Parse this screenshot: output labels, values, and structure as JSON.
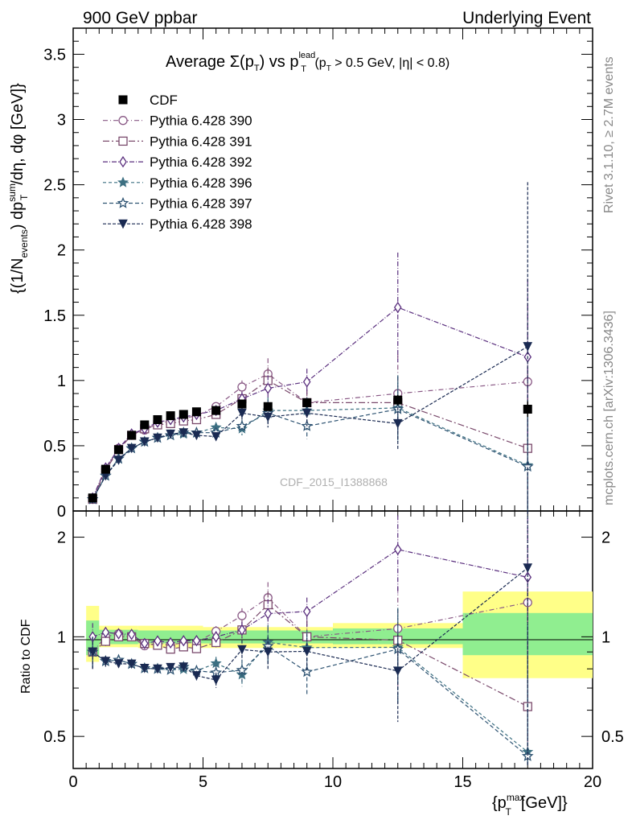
{
  "header": {
    "left": "900 GeV ppbar",
    "right": "Underlying Event"
  },
  "side_labels": {
    "rivet": "Rivet 3.1.10, ≥ 2.7M events",
    "mcplots": "mcplots.cern.ch [arXiv:1306.3436]"
  },
  "watermark": "CDF_2015_I1388868",
  "main_title": {
    "prefix": "Average ",
    "sigma": "Σ(p",
    "sub_t": "T",
    "mid": ") vs p",
    "sup_lead": "lead",
    "sub_t2": "T",
    "cut": " (p",
    "sub_t3": "T",
    "rest": " > 0.5 GeV, |η| < 0.8)"
  },
  "axes": {
    "upper_ylabel": "{(1/N_events) dp_T^sum/dη, dφ [GeV]}",
    "lower_ylabel": "Ratio to CDF",
    "xlabel": "{p_T^max [GeV]}",
    "upper_yticks": [
      "0",
      "0.5",
      "1",
      "1.5",
      "2",
      "2.5",
      "3",
      "3.5"
    ],
    "lower_yticks": [
      "0.5",
      "1",
      "2"
    ],
    "xticks": [
      "0",
      "5",
      "10",
      "15",
      "20"
    ]
  },
  "chart_data": {
    "type": "line",
    "xlim": [
      0,
      20
    ],
    "upper_ylim": [
      0,
      3.7
    ],
    "lower_ylim": [
      0.4,
      2.4
    ],
    "lower_scale": "log",
    "legend_position": "top-left",
    "x": [
      0.75,
      1.25,
      1.75,
      2.25,
      2.75,
      3.25,
      3.75,
      4.25,
      4.75,
      5.5,
      6.5,
      7.5,
      9.0,
      12.5,
      17.5
    ],
    "data": {
      "name": "CDF",
      "values": [
        0.1,
        0.32,
        0.47,
        0.58,
        0.66,
        0.7,
        0.73,
        0.74,
        0.76,
        0.77,
        0.82,
        0.8,
        0.83,
        0.85,
        0.78
      ],
      "errors": [
        0.01,
        0.01,
        0.01,
        0.01,
        0.01,
        0.01,
        0.01,
        0.01,
        0.01,
        0.01,
        0.02,
        0.02,
        0.03,
        0.04,
        0.06
      ]
    },
    "band_inner": [
      [
        0.5,
        1.0,
        0.88,
        1.12
      ],
      [
        1.0,
        2.5,
        0.95,
        1.05
      ],
      [
        2.5,
        5.0,
        0.955,
        1.045
      ],
      [
        5.0,
        10.0,
        0.955,
        1.045
      ],
      [
        10.0,
        15.0,
        0.95,
        1.06
      ],
      [
        15.0,
        20.0,
        0.88,
        1.18
      ]
    ],
    "band_outer": [
      [
        0.5,
        1.0,
        0.84,
        1.24
      ],
      [
        1.0,
        2.5,
        0.93,
        1.08
      ],
      [
        2.5,
        5.0,
        0.925,
        1.08
      ],
      [
        5.0,
        10.0,
        0.925,
        1.07
      ],
      [
        10.0,
        15.0,
        0.925,
        1.1
      ],
      [
        15.0,
        20.0,
        0.75,
        1.37
      ]
    ],
    "series": [
      {
        "name": "Pythia 6.428 390",
        "color": "#8a5a86",
        "dash": "6,3,1,3",
        "marker": "circle-open",
        "values": [
          0.09,
          0.32,
          0.48,
          0.58,
          0.62,
          0.67,
          0.69,
          0.71,
          0.73,
          0.8,
          0.95,
          1.05,
          0.83,
          0.9,
          0.99
        ],
        "errors": [
          0.01,
          0.01,
          0.01,
          0.01,
          0.01,
          0.01,
          0.01,
          0.02,
          0.02,
          0.03,
          0.05,
          0.12,
          0.1,
          0.3,
          0.6
        ]
      },
      {
        "name": "Pythia 6.428 391",
        "color": "#7a4a6c",
        "dash": "8,3,2,3",
        "marker": "square-open",
        "values": [
          0.09,
          0.31,
          0.47,
          0.58,
          0.63,
          0.66,
          0.67,
          0.69,
          0.7,
          0.74,
          0.86,
          1.0,
          0.83,
          0.83,
          0.48
        ],
        "errors": [
          0.01,
          0.01,
          0.01,
          0.01,
          0.01,
          0.01,
          0.01,
          0.02,
          0.02,
          0.03,
          0.05,
          0.1,
          0.1,
          0.2,
          0.6
        ]
      },
      {
        "name": "Pythia 6.428 392",
        "color": "#5a2f7e",
        "dash": "6,2,1,2",
        "marker": "diamond-open",
        "values": [
          0.1,
          0.33,
          0.48,
          0.59,
          0.63,
          0.68,
          0.7,
          0.72,
          0.74,
          0.77,
          0.86,
          0.94,
          0.99,
          1.56,
          1.18
        ],
        "errors": [
          0.01,
          0.01,
          0.01,
          0.01,
          0.01,
          0.01,
          0.01,
          0.02,
          0.02,
          0.03,
          0.05,
          0.1,
          0.1,
          0.42,
          0.6
        ]
      },
      {
        "name": "Pythia 6.428 396",
        "color": "#3d7082",
        "dash": "4,3",
        "marker": "star-filled",
        "values": [
          0.09,
          0.27,
          0.4,
          0.48,
          0.53,
          0.56,
          0.58,
          0.59,
          0.6,
          0.64,
          0.63,
          0.77,
          0.77,
          0.79,
          0.35
        ],
        "errors": [
          0.01,
          0.01,
          0.01,
          0.01,
          0.01,
          0.01,
          0.01,
          0.01,
          0.02,
          0.03,
          0.05,
          0.1,
          0.1,
          0.25,
          0.5
        ]
      },
      {
        "name": "Pythia 6.428 397",
        "color": "#2e5372",
        "dash": "5,3",
        "marker": "star-open",
        "values": [
          0.09,
          0.27,
          0.4,
          0.48,
          0.53,
          0.56,
          0.58,
          0.6,
          0.6,
          0.6,
          0.65,
          0.75,
          0.65,
          0.78,
          0.34
        ],
        "errors": [
          0.01,
          0.01,
          0.01,
          0.01,
          0.01,
          0.01,
          0.01,
          0.01,
          0.02,
          0.03,
          0.05,
          0.1,
          0.1,
          0.25,
          0.5
        ]
      },
      {
        "name": "Pythia 6.428 398",
        "color": "#1a2a52",
        "dash": "4,2",
        "marker": "triangle-down",
        "values": [
          0.09,
          0.27,
          0.39,
          0.48,
          0.53,
          0.56,
          0.59,
          0.6,
          0.58,
          0.57,
          0.75,
          0.72,
          0.75,
          0.67,
          1.26
        ],
        "errors": [
          0.01,
          0.01,
          0.01,
          0.01,
          0.01,
          0.01,
          0.01,
          0.01,
          0.02,
          0.03,
          0.05,
          0.08,
          0.1,
          0.2,
          1.26
        ]
      }
    ]
  }
}
